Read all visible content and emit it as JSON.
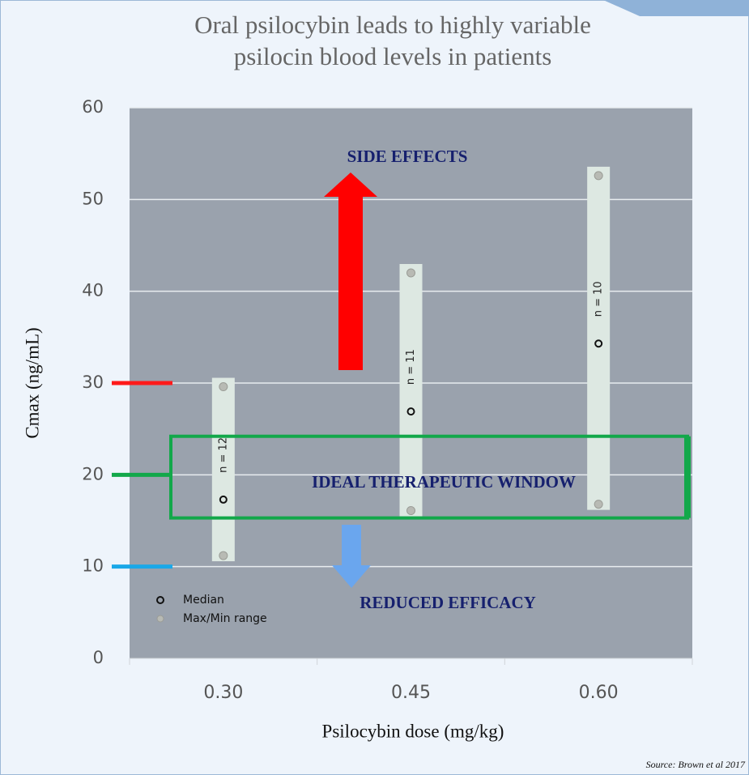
{
  "chart_data": {
    "type": "range",
    "title": [
      "Oral psilocybin leads to highly variable",
      "psilocin blood levels in patients"
    ],
    "x_label": "Psilocybin dose (mg/kg)",
    "y_label": "Cmax (ng/mL)",
    "categories": [
      "0.30",
      "0.45",
      "0.60"
    ],
    "series": [
      {
        "name": "Median",
        "values": [
          17.3,
          26.9,
          34.3
        ]
      },
      {
        "name": "Max/Min range",
        "min": [
          11.2,
          16.1,
          16.8
        ],
        "max": [
          29.6,
          42,
          52.6
        ]
      }
    ],
    "n_labels": [
      "n = 12",
      "n = 11",
      "n = 10"
    ],
    "ylim": [
      0,
      60
    ],
    "yticks": [
      0,
      10,
      20,
      30,
      40,
      50,
      60
    ],
    "grid": true,
    "thresholds": [
      {
        "value": 30,
        "color": "#ff1a1a"
      },
      {
        "value": 20,
        "color": "#12a84a"
      },
      {
        "value": 10,
        "color": "#1aa8e8"
      }
    ],
    "window": {
      "label": "IDEAL THERAPEUTIC WINDOW",
      "ylim": [
        15.3,
        24.2
      ]
    },
    "annotations": [
      "SIDE EFFECTS",
      "REDUCED EFFICACY"
    ],
    "source": "Source: Brown et al 2017"
  }
}
